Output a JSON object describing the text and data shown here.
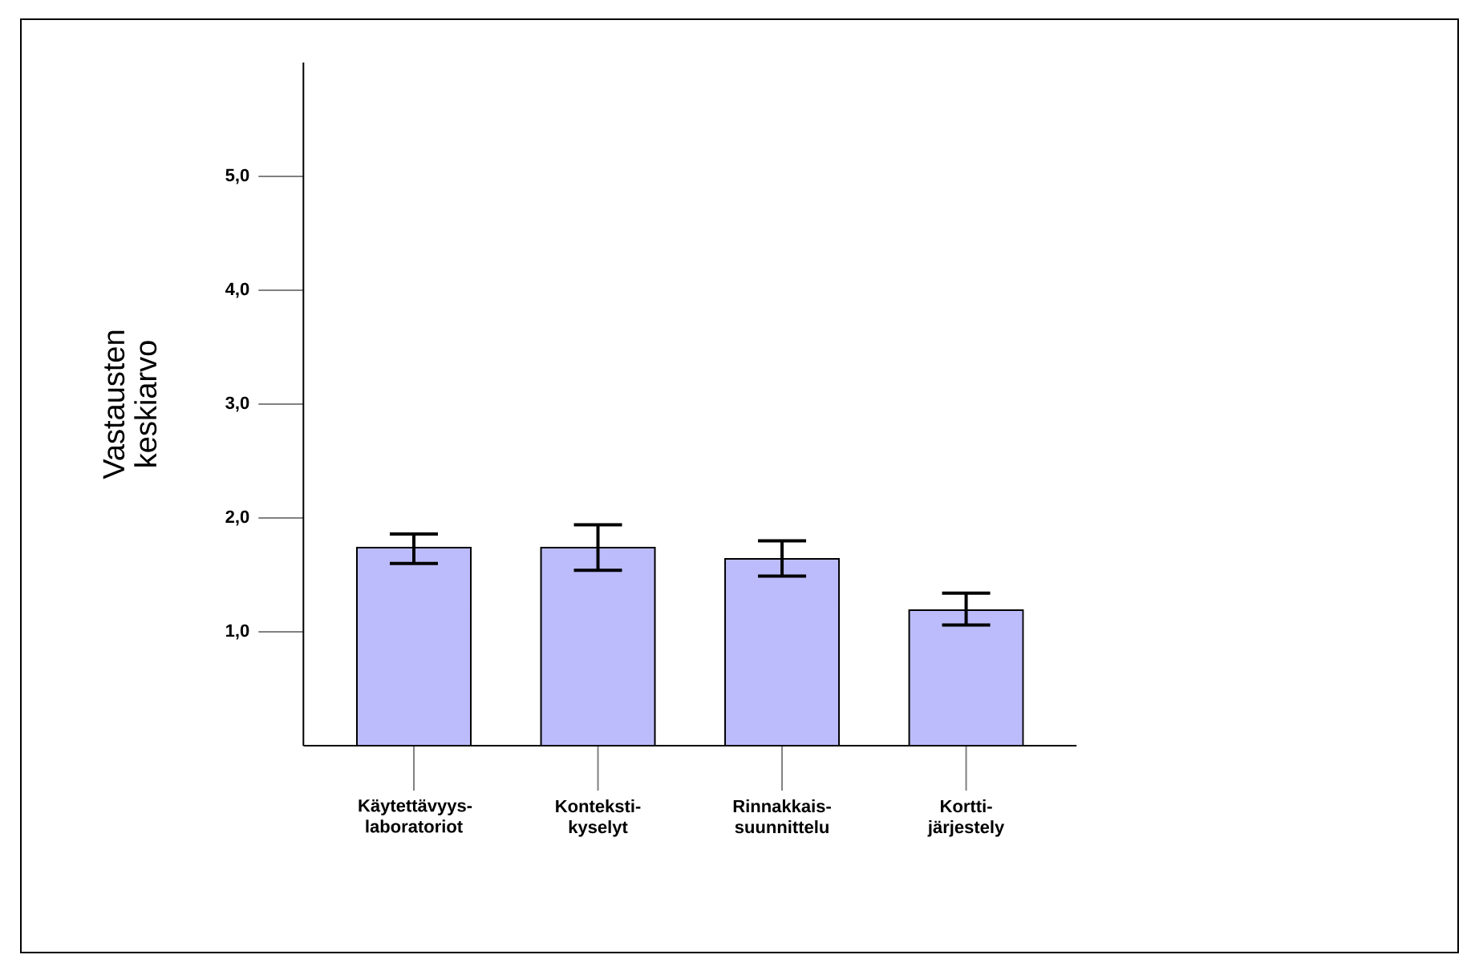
{
  "chart_data": {
    "type": "bar",
    "ylabel": "Vastausten keskiarvo",
    "categories": [
      "Käytettävyys-laboratoriot",
      "Konteksti-kyselyt",
      "Rinnakkais-suunnittelu",
      "Kortti-järjestely"
    ],
    "values": [
      1.74,
      1.74,
      1.64,
      1.19
    ],
    "errors": [
      [
        1.6,
        1.86
      ],
      [
        1.54,
        1.94
      ],
      [
        1.49,
        1.8
      ],
      [
        1.06,
        1.34
      ]
    ],
    "color": "#bcbcfc",
    "ylim": [
      0,
      6
    ],
    "yticks": [
      {
        "value": 1,
        "label": "1,0"
      },
      {
        "value": 2,
        "label": "2,0"
      },
      {
        "value": 3,
        "label": "3,0"
      },
      {
        "value": 4,
        "label": "4,0"
      },
      {
        "value": 5,
        "label": "5,0"
      }
    ]
  }
}
